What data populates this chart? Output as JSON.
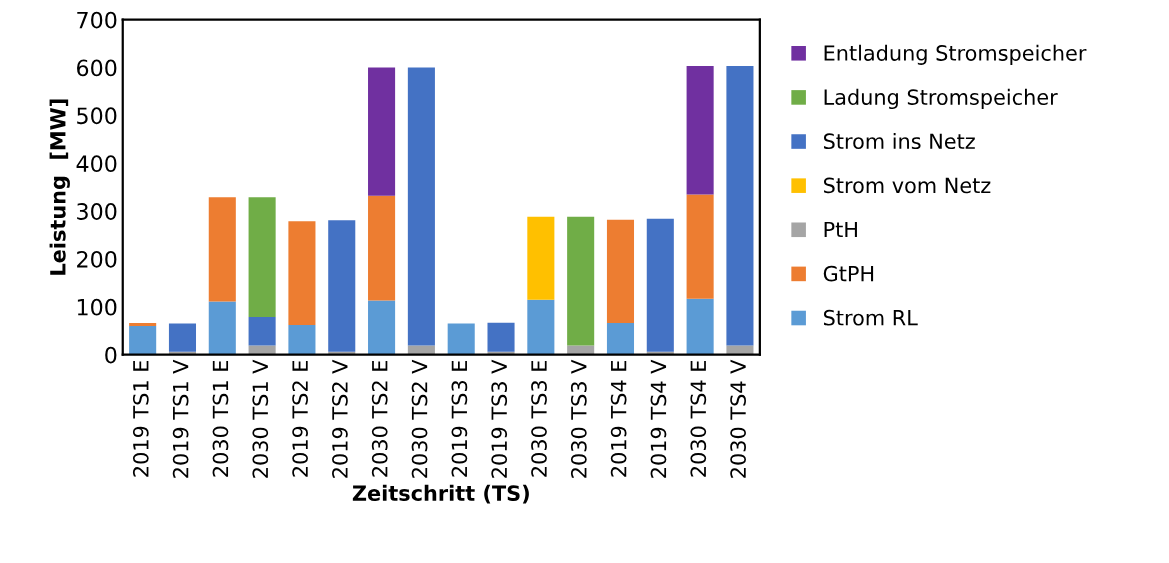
{
  "chart_data": {
    "type": "bar",
    "stacked": true,
    "xlabel": "Zeitschritt (TS)",
    "ylabel": "Leistung  [MW]",
    "categories": [
      "2019 TS1 E",
      "2019 TS1 V",
      "2030 TS1 E",
      "2030 TS1 V",
      "2019 TS2 E",
      "2019 TS2 V",
      "2030 TS2 E",
      "2030 TS2 V",
      "2019 TS3 E",
      "2019 TS3 V",
      "2030 TS3 E",
      "2030 TS3 V",
      "2019 TS4 E",
      "2019 TS4 V",
      "2030 TS4 E",
      "2030 TS4 V"
    ],
    "series": [
      {
        "name": "Strom RL",
        "color": "#5b9bd5",
        "values": [
          60,
          0,
          111,
          0,
          62,
          0,
          113,
          0,
          65,
          0,
          115,
          0,
          66,
          0,
          117,
          0
        ]
      },
      {
        "name": "GtPH",
        "color": "#ed7d31",
        "values": [
          6,
          0,
          218,
          0,
          217,
          0,
          219,
          0,
          0,
          0,
          0,
          0,
          216,
          0,
          218,
          0
        ]
      },
      {
        "name": "PtH",
        "color": "#a5a5a5",
        "values": [
          0,
          6,
          0,
          19,
          0,
          6,
          0,
          19,
          0,
          6,
          0,
          19,
          0,
          6,
          0,
          19
        ]
      },
      {
        "name": "Strom vom Netz",
        "color": "#ffc000",
        "values": [
          0,
          0,
          0,
          0,
          0,
          0,
          0,
          0,
          0,
          0,
          173,
          0,
          0,
          0,
          0,
          0
        ]
      },
      {
        "name": "Strom ins Netz",
        "color": "#4472c4",
        "values": [
          0,
          59,
          0,
          60,
          0,
          275,
          0,
          581,
          0,
          61,
          0,
          0,
          0,
          278,
          0,
          584
        ]
      },
      {
        "name": "Ladung Stromspeicher",
        "color": "#70ad47",
        "values": [
          0,
          0,
          0,
          250,
          0,
          0,
          0,
          0,
          0,
          0,
          0,
          269,
          0,
          0,
          0,
          0
        ]
      },
      {
        "name": "Entladung Stromspeicher",
        "color": "#7030a0",
        "values": [
          0,
          0,
          0,
          0,
          0,
          0,
          268,
          0,
          0,
          0,
          0,
          0,
          0,
          0,
          268,
          0
        ]
      }
    ],
    "ylim": [
      0,
      700
    ],
    "yticks": [
      0,
      100,
      200,
      300,
      400,
      500,
      600,
      700
    ],
    "grid": false,
    "legend": "right"
  }
}
